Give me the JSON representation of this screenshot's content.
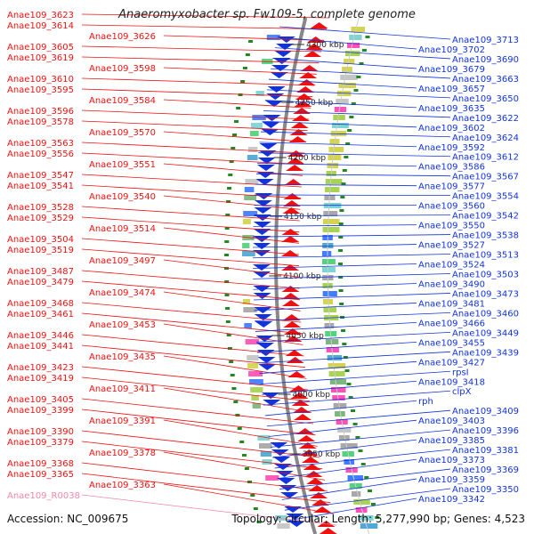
{
  "title": "Anaeromyxobacter sp. Fw109-5, complete genome",
  "accession": "Accession: NC_009675",
  "topology": "Topology: circular; Length: 5,277,990 bp; Genes: 4,523",
  "colors": {
    "forward": "#ee1111",
    "reverse": "#1133dd",
    "rna": "#ee88aa",
    "backbone": "#888888"
  },
  "tick_marks": [
    "4300 kbp",
    "4250 kbp",
    "4200 kbp",
    "4150 kbp",
    "4100 kbp",
    "4050 kbp",
    "4000 kbp",
    "3950 kbp"
  ],
  "left_labels": [
    "Anae109_3623",
    "Anae109_3614",
    "Anae109_3626",
    "Anae109_3605",
    "Anae109_3619",
    "Anae109_3598",
    "Anae109_3610",
    "Anae109_3595",
    "Anae109_3584",
    "Anae109_3596",
    "Anae109_3578",
    "Anae109_3570",
    "Anae109_3563",
    "Anae109_3556",
    "Anae109_3551",
    "Anae109_3547",
    "Anae109_3541",
    "Anae109_3540",
    "Anae109_3528",
    "Anae109_3529",
    "Anae109_3514",
    "Anae109_3504",
    "Anae109_3519",
    "Anae109_3497",
    "Anae109_3487",
    "Anae109_3479",
    "Anae109_3474",
    "Anae109_3468",
    "Anae109_3461",
    "Anae109_3453",
    "Anae109_3446",
    "Anae109_3441",
    "Anae109_3435",
    "Anae109_3423",
    "Anae109_3419",
    "Anae109_3411",
    "Anae109_3405",
    "Anae109_3399",
    "Anae109_3391",
    "Anae109_3390",
    "Anae109_3379",
    "Anae109_3378",
    "Anae109_3368",
    "Anae109_3365",
    "Anae109_3363",
    "Anae109_R0038"
  ],
  "right_labels": [
    "Anae109_3713",
    "Anae109_3702",
    "Anae109_3690",
    "Anae109_3679",
    "Anae109_3663",
    "Anae109_3657",
    "Anae109_3650",
    "Anae109_3635",
    "Anae109_3622",
    "Anae109_3602",
    "Anae109_3624",
    "Anae109_3592",
    "Anae109_3612",
    "Anae109_3586",
    "Anae109_3567",
    "Anae109_3577",
    "Anae109_3554",
    "Anae109_3560",
    "Anae109_3542",
    "Anae109_3550",
    "Anae109_3538",
    "Anae109_3527",
    "Anae109_3513",
    "Anae109_3524",
    "Anae109_3503",
    "Anae109_3490",
    "Anae109_3473",
    "Anae109_3481",
    "Anae109_3460",
    "Anae109_3466",
    "Anae109_3449",
    "Anae109_3455",
    "Anae109_3439",
    "Anae109_3427",
    "rpsI",
    "Anae109_3418",
    "clpX",
    "rph",
    "Anae109_3409",
    "Anae109_3403",
    "Anae109_3396",
    "Anae109_3385",
    "Anae109_3381",
    "Anae109_3373",
    "Anae109_3369",
    "Anae109_3359",
    "Anae109_3350",
    "Anae109_3342"
  ]
}
